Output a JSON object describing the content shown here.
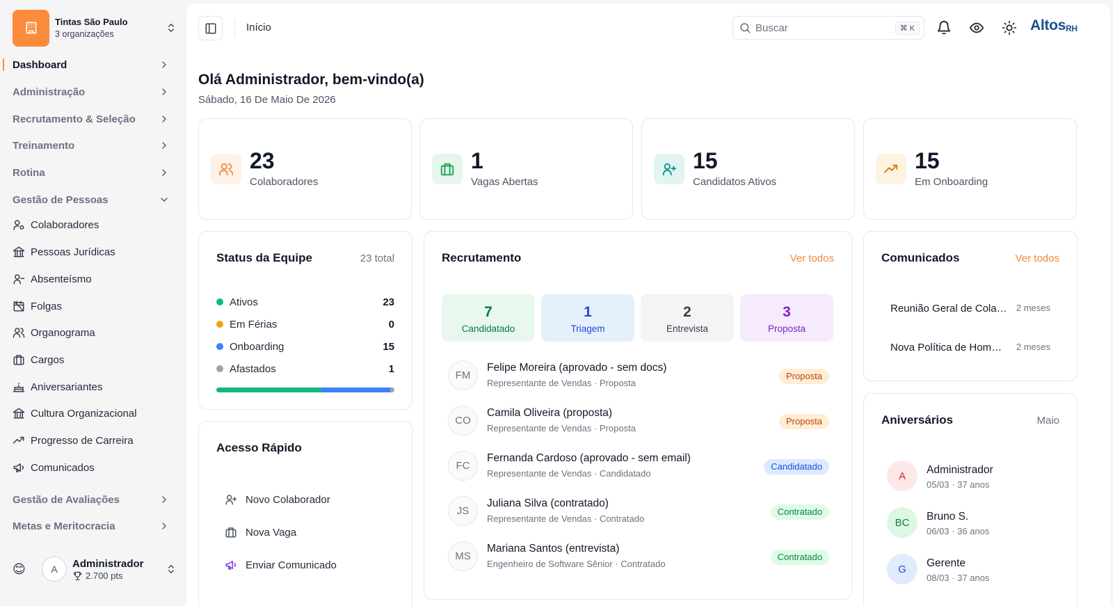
{
  "sidebar": {
    "org_name": "Tintas São Paulo",
    "org_sub": "3 organizações",
    "groups": [
      {
        "label": "Dashboard"
      },
      {
        "label": "Administração"
      },
      {
        "label": "Recrutamento & Seleção"
      },
      {
        "label": "Treinamento"
      },
      {
        "label": "Rotina"
      },
      {
        "label": "Gestão de Pessoas"
      },
      {
        "label": "Gestão de Avaliações"
      },
      {
        "label": "Metas e Meritocracia"
      }
    ],
    "items": [
      {
        "label": "Colaboradores",
        "icon": "user-cog-icon"
      },
      {
        "label": "Pessoas Jurídicas",
        "icon": "landmark-icon"
      },
      {
        "label": "Absenteísmo",
        "icon": "user-minus-icon"
      },
      {
        "label": "Folgas",
        "icon": "calendar-off-icon"
      },
      {
        "label": "Organograma",
        "icon": "users-icon"
      },
      {
        "label": "Cargos",
        "icon": "briefcase-icon"
      },
      {
        "label": "Aniversariantes",
        "icon": "cake-icon"
      },
      {
        "label": "Cultura Organizacional",
        "icon": "landmark-icon"
      },
      {
        "label": "Progresso de Carreira",
        "icon": "trending-up-icon"
      },
      {
        "label": "Comunicados",
        "icon": "megaphone-icon"
      }
    ],
    "user": {
      "emoji": "😊",
      "initial": "A",
      "name": "Administrador",
      "points": "2.700 pts"
    }
  },
  "topbar": {
    "breadcrumb": "Início",
    "search_placeholder": "Buscar",
    "shortcut": "⌘ K",
    "brand": "Altos",
    "brand_sub": "RH"
  },
  "greeting": {
    "title": "Olá Administrador, bem-vindo(a)",
    "date": "Sábado, 16 De Maio De 2026"
  },
  "stats": [
    {
      "value": "23",
      "label": "Colaboradores",
      "icon": "users-icon",
      "color": "#f08a3c",
      "bg": "#fff1e6"
    },
    {
      "value": "1",
      "label": "Vagas Abertas",
      "icon": "briefcase-icon",
      "color": "#16a34a",
      "bg": "#e7f6ec"
    },
    {
      "value": "15",
      "label": "Candidatos Ativos",
      "icon": "user-plus-icon",
      "color": "#0d9488",
      "bg": "#e3f5f3"
    },
    {
      "value": "15",
      "label": "Em Onboarding",
      "icon": "trending-up-icon",
      "color": "#d97706",
      "bg": "#fdf3e1"
    }
  ],
  "team_status": {
    "title": "Status da Equipe",
    "total": "23 total",
    "rows": [
      {
        "label": "Ativos",
        "value": "23",
        "color": "#10b981"
      },
      {
        "label": "Em Férias",
        "value": "0",
        "color": "#f59e0b"
      },
      {
        "label": "Onboarding",
        "value": "15",
        "color": "#3b82f6"
      },
      {
        "label": "Afastados",
        "value": "1",
        "color": "#9ca3af"
      }
    ]
  },
  "quick_access": {
    "title": "Acesso Rápido",
    "items": [
      {
        "label": "Novo Colaborador",
        "icon": "user-plus-icon",
        "color": "#4b5563"
      },
      {
        "label": "Nova Vaga",
        "icon": "briefcase-icon",
        "color": "#4b5563"
      },
      {
        "label": "Enviar Comunicado",
        "icon": "megaphone-icon",
        "color": "#7c3aed"
      }
    ]
  },
  "recruitment": {
    "title": "Recrutamento",
    "link": "Ver todos",
    "stages": [
      {
        "value": "7",
        "label": "Candidatado",
        "color": "#047857",
        "bg": "#e8f8ef"
      },
      {
        "value": "1",
        "label": "Triagem",
        "color": "#1d4ed8",
        "bg": "#e6effc"
      },
      {
        "value": "2",
        "label": "Entrevista",
        "color": "#374151",
        "bg": "#f4f4f5"
      },
      {
        "value": "3",
        "label": "Proposta",
        "color": "#7e22ce",
        "bg": "#f5ebfc"
      }
    ],
    "candidates": [
      {
        "initials": "FM",
        "name": "Felipe Moreira (aprovado - sem docs)",
        "detail": "Representante de Vendas · Proposta",
        "badge": "Proposta",
        "badge_color": "#c2410c",
        "badge_bg": "#ffedd5"
      },
      {
        "initials": "CO",
        "name": "Camila Oliveira (proposta)",
        "detail": "Representante de Vendas · Proposta",
        "badge": "Proposta",
        "badge_color": "#c2410c",
        "badge_bg": "#ffedd5"
      },
      {
        "initials": "FC",
        "name": "Fernanda Cardoso (aprovado - sem email)",
        "detail": "Representante de Vendas · Candidatado",
        "badge": "Candidatado",
        "badge_color": "#1d4ed8",
        "badge_bg": "#dbeafe"
      },
      {
        "initials": "JS",
        "name": "Juliana Silva (contratado)",
        "detail": "Representante de Vendas · Contratado",
        "badge": "Contratado",
        "badge_color": "#15803d",
        "badge_bg": "#dcfce7"
      },
      {
        "initials": "MS",
        "name": "Mariana Santos (entrevista)",
        "detail": "Engenheiro de Software Sênior · Contratado",
        "badge": "Contratado",
        "badge_color": "#15803d",
        "badge_bg": "#dcfce7"
      }
    ]
  },
  "announcements": {
    "title": "Comunicados",
    "link": "Ver todos",
    "items": [
      {
        "title": "Reunião Geral de Colab...",
        "time": "2 meses"
      },
      {
        "title": "Nova Política de Home ...",
        "time": "2 meses"
      }
    ]
  },
  "birthdays": {
    "title": "Aniversários",
    "month": "Maio",
    "items": [
      {
        "initials": "A",
        "name": "Administrador",
        "detail": "05/03 · 37 anos",
        "color": "#dc2626",
        "bg": "#fde8e8"
      },
      {
        "initials": "BC",
        "name": "Bruno S.",
        "detail": "06/03 · 36 anos",
        "color": "#15803d",
        "bg": "#dcf7e3"
      },
      {
        "initials": "G",
        "name": "Gerente",
        "detail": "08/03 · 37 anos",
        "color": "#1d4ed8",
        "bg": "#e0ebfc"
      }
    ]
  }
}
